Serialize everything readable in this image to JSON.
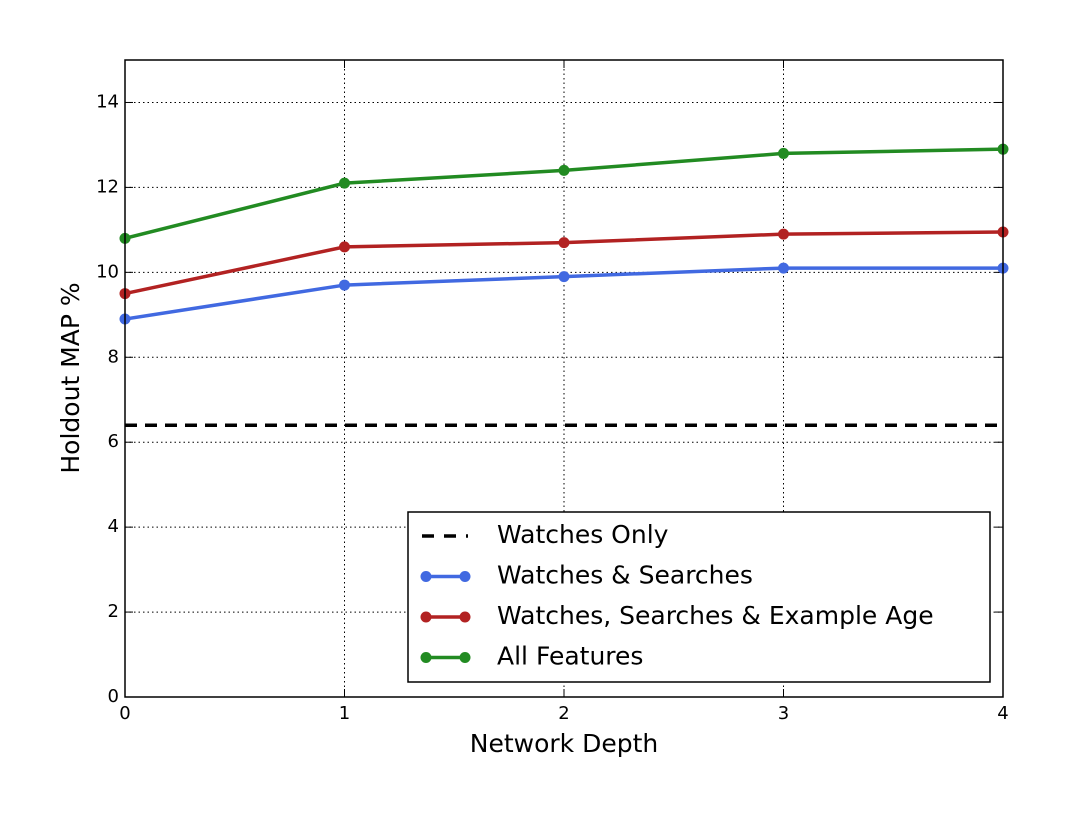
{
  "chart_data": {
    "type": "line",
    "x_label": "Network Depth",
    "y_label": "Holdout MAP %",
    "x": [
      0,
      1,
      2,
      3,
      4
    ],
    "series": [
      {
        "name": "Watches Only",
        "color": "#000000",
        "linestyle": "dashed",
        "marker": "none",
        "values": [
          6.4,
          6.4,
          6.4,
          6.4,
          6.4
        ]
      },
      {
        "name": "Watches & Searches",
        "color": "#4169e1",
        "linestyle": "solid",
        "marker": "circle",
        "values": [
          8.9,
          9.7,
          9.9,
          10.1,
          10.1
        ]
      },
      {
        "name": "Watches, Searches & Example Age",
        "color": "#b22222",
        "linestyle": "solid",
        "marker": "circle",
        "values": [
          9.5,
          10.6,
          10.7,
          10.9,
          10.95
        ]
      },
      {
        "name": "All Features",
        "color": "#228b22",
        "linestyle": "solid",
        "marker": "circle",
        "values": [
          10.8,
          12.1,
          12.4,
          12.8,
          12.9
        ]
      }
    ],
    "xlim": [
      0,
      4
    ],
    "xticks": [
      0,
      1,
      2,
      3,
      4
    ],
    "ylim": [
      0,
      15
    ],
    "yticks": [
      0,
      2,
      4,
      6,
      8,
      10,
      12,
      14
    ],
    "grid": true,
    "legend": "lower right"
  }
}
